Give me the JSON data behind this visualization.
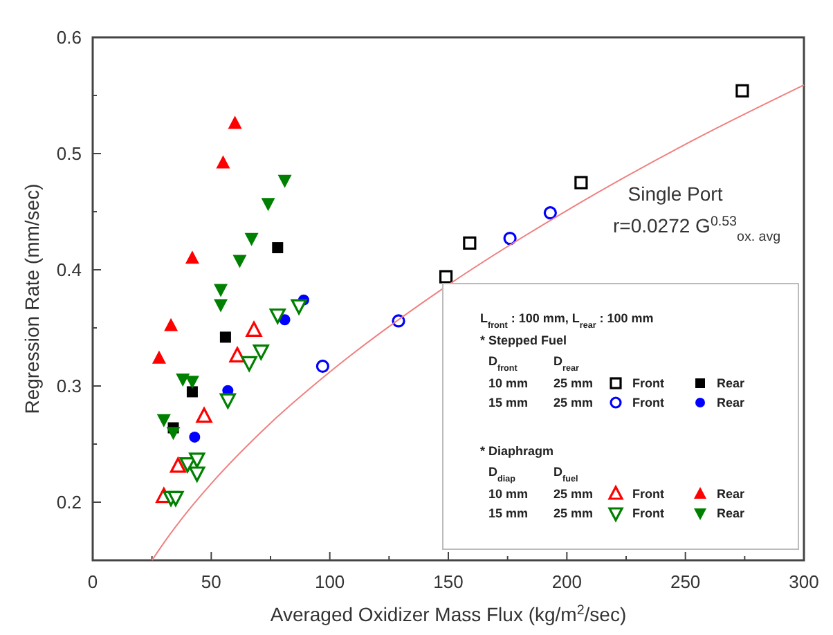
{
  "chart_data": {
    "type": "scatter",
    "xlabel": "Averaged Oxidizer Mass Flux (kg/m$^{2}$/sec)",
    "ylabel": "Regression Rate (mm/sec)",
    "xlim": [
      0,
      300
    ],
    "ylim": [
      0.15,
      0.6
    ],
    "xticks": [
      0,
      {
        "value": 25,
        "label": null
      },
      50,
      {
        "value": 75,
        "label": null
      },
      100,
      {
        "value": 125,
        "label": null
      },
      150,
      {
        "value": 175,
        "label": null
      },
      200,
      {
        "value": 225,
        "label": null
      },
      250,
      {
        "value": 275,
        "label": null
      },
      300
    ],
    "yticks": [
      {
        "value": 0.15,
        "label": null
      },
      0.2,
      {
        "value": 0.25,
        "label": null
      },
      0.3,
      {
        "value": 0.35,
        "label": null
      },
      0.4,
      {
        "value": 0.45,
        "label": null
      },
      0.5,
      {
        "value": 0.55,
        "label": null
      },
      0.6
    ],
    "grid": false,
    "legend": "bottom right",
    "series": [
      {
        "name": "Front",
        "color": "#000000",
        "marker": "square",
        "x": [
          149,
          159,
          206,
          274
        ],
        "values": [
          0.394,
          0.423,
          0.475,
          0.554
        ]
      },
      {
        "name": "Rear",
        "color": "#000000",
        "marker": "square",
        "x": [
          34,
          42,
          56,
          78
        ],
        "values": [
          0.264,
          0.295,
          0.342,
          0.419
        ]
      },
      {
        "name": "Front",
        "color": "#0000ff",
        "marker": "circle",
        "x": [
          97,
          129,
          176,
          193
        ],
        "values": [
          0.317,
          0.356,
          0.427,
          0.449
        ]
      },
      {
        "name": "Rear",
        "color": "#0000ff",
        "marker": "circle",
        "x": [
          43,
          57,
          81,
          89
        ],
        "values": [
          0.256,
          0.296,
          0.357,
          0.374
        ]
      },
      {
        "name": "Front",
        "color": "#ff0000",
        "marker": "triangle",
        "x": [
          30,
          36,
          47,
          61,
          68
        ],
        "values": [
          0.205,
          0.231,
          0.274,
          0.326,
          0.348
        ]
      },
      {
        "name": "Rear",
        "color": "#ff0000",
        "marker": "triangle",
        "x": [
          28,
          33,
          42,
          55,
          60
        ],
        "values": [
          0.324,
          0.352,
          0.41,
          0.492,
          0.526
        ]
      },
      {
        "name": "Front",
        "color": "#008000",
        "marker": "triangle-down",
        "x": [
          33,
          35,
          40,
          44,
          44,
          57,
          66,
          71,
          78,
          87
        ],
        "values": [
          0.204,
          0.204,
          0.233,
          0.237,
          0.225,
          0.288,
          0.32,
          0.33,
          0.361,
          0.369
        ]
      },
      {
        "name": "Rear",
        "color": "#008000",
        "marker": "triangle-down",
        "x": [
          30,
          34,
          38,
          42,
          54,
          54,
          62,
          67,
          74,
          81
        ],
        "values": [
          0.271,
          0.26,
          0.306,
          0.304,
          0.37,
          0.383,
          0.408,
          0.427,
          0.457,
          0.477
        ]
      },
      {
        "type": "line",
        "color": "#f08080",
        "marker": "none",
        "line_style": "solid",
        "x": [
          25,
          30,
          40,
          50,
          75,
          100,
          150,
          200,
          250,
          300
        ],
        "values": [
          0.15,
          0.165,
          0.192,
          0.216,
          0.268,
          0.312,
          0.387,
          0.451,
          0.508,
          0.559
        ]
      }
    ],
    "annotations": [
      "Single Port",
      "r=0.0272 G$^{0.53}$$_{ox. avg}$",
      "L$_{front}$ : 100 mm, L$_{rear}$ : 100 mm",
      "* Stepped Fuel",
      "D$_{front}$",
      "D$_{rear}$",
      "10 mm",
      "25 mm",
      "15 mm",
      "25 mm",
      "* Diaphragm",
      "D$_{diap}$",
      "D$_{fuel}$",
      "10 mm",
      "25 mm",
      "15 mm",
      "25 mm"
    ]
  }
}
